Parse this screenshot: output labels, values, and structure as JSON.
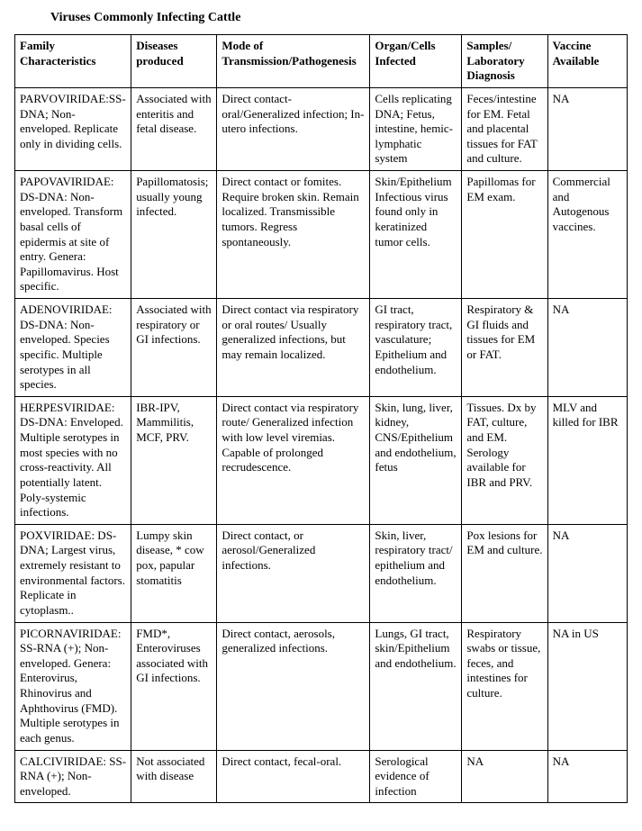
{
  "title": "Viruses Commonly Infecting Cattle",
  "table": {
    "headers": [
      "Family Characteristics",
      "Diseases produced",
      "Mode of Transmission/Pathogenesis",
      "Organ/Cells Infected",
      "Samples/ Laboratory Diagnosis",
      "Vaccine Available"
    ],
    "rows": [
      [
        "PARVOVIRIDAE:SS-DNA; Non-enveloped. Replicate only in dividing cells.",
        "Associated with enteritis and fetal disease.",
        "Direct contact-oral/Generalized infection; In-utero infections.",
        "Cells replicating DNA; Fetus, intestine, hemic-lymphatic system",
        "Feces/intestine for EM.  Fetal and placental tissues for FAT and culture.",
        "NA"
      ],
      [
        "PAPOVAVIRIDAE: DS-DNA: Non-enveloped.  Transform basal cells of epidermis at site of entry.  Genera: Papillomavirus.  Host specific.",
        "Papillomatosis; usually young infected.",
        "Direct contact or fomites. Require broken skin. Remain localized. Transmissible tumors. Regress spontaneously.",
        "Skin/Epithelium Infectious virus found only in keratinized tumor cells.",
        "Papillomas for EM exam.",
        "Commercial and Autogenous vaccines."
      ],
      [
        "ADENOVIRIDAE: DS-DNA: Non-enveloped.  Species specific.  Multiple serotypes in all species.",
        "Associated with respiratory or GI infections.",
        "Direct contact via respiratory or oral routes/ Usually generalized infections, but may remain localized.",
        "GI tract, respiratory tract, vasculature; Epithelium and endothelium.",
        "Respiratory & GI fluids and tissues for EM or FAT.",
        "NA"
      ],
      [
        "HERPESVIRIDAE: DS-DNA: Enveloped. Multiple serotypes in most species with no cross-reactivity.  All potentially latent. Poly-systemic infections.",
        " IBR-IPV, Mammilitis, MCF, PRV.",
        "Direct contact via respiratory route/  Generalized infection with low level viremias.  Capable of prolonged recrudescence.",
        "Skin, lung, liver, kidney, CNS/Epithelium and endothelium, fetus",
        "Tissues.  Dx by FAT, culture, and EM. Serology available for IBR and PRV.",
        " MLV and killed for IBR"
      ],
      [
        "POXVIRIDAE: DS-DNA; Largest virus, extremely resistant to environmental factors.  Replicate in cytoplasm..",
        " Lumpy skin disease, * cow pox, papular stomatitis",
        "Direct contact, or aerosol/Generalized infections.",
        "Skin, liver, respiratory tract/ epithelium and endothelium.",
        "Pox lesions for EM and culture.",
        "NA"
      ],
      [
        "PICORNAVIRIDAE: SS-RNA (+); Non-enveloped.  Genera: Enterovirus, Rhinovirus and Aphthovirus (FMD). Multiple serotypes in each genus.",
        "FMD*, Enteroviruses associated with GI infections.",
        "Direct contact, aerosols, generalized infections.",
        "Lungs, GI tract, skin/Epithelium and endothelium.",
        "Respiratory swabs or tissue, feces, and intestines for culture.",
        "NA in US"
      ],
      [
        "CALCIVIRIDAE: SS-RNA (+); Non-enveloped.",
        "Not associated with disease",
        "Direct contact, fecal-oral.",
        "Serological evidence of infection",
        "NA",
        "NA"
      ]
    ]
  },
  "style": {
    "font_family": "Times New Roman",
    "title_fontsize_pt": 11,
    "cell_fontsize_pt": 10,
    "border_color": "#000000",
    "background_color": "#ffffff",
    "text_color": "#000000",
    "col_widths_pct": [
      19,
      14,
      25,
      15,
      14,
      13
    ]
  }
}
